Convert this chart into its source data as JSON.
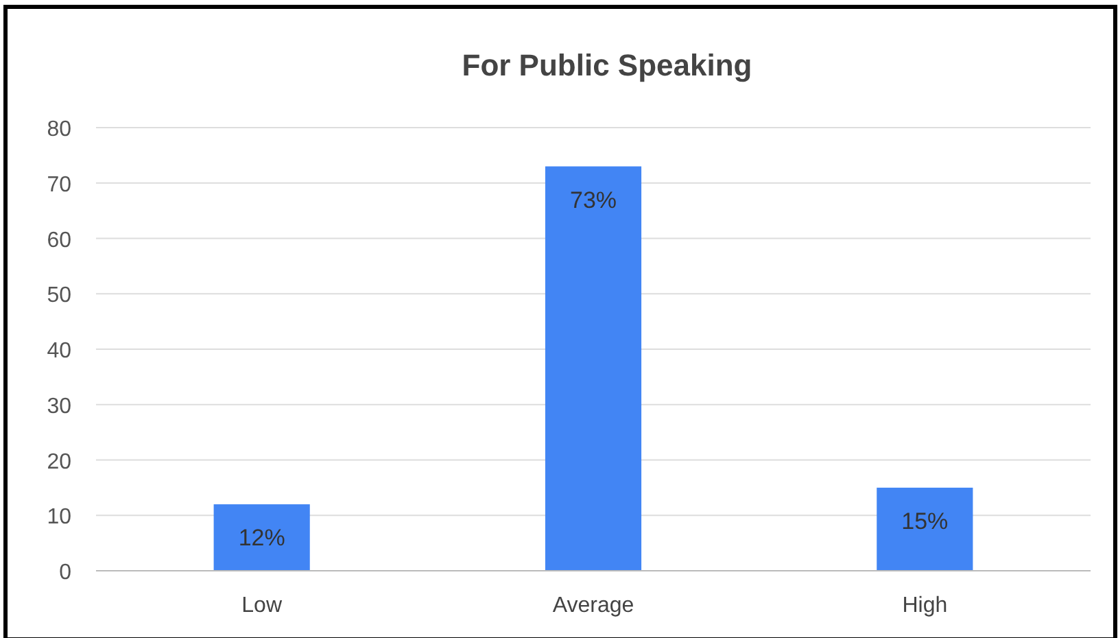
{
  "chart_data": {
    "type": "bar",
    "title": "For Public Speaking",
    "categories": [
      "Low",
      "Average",
      "High"
    ],
    "values": [
      12,
      73,
      15
    ],
    "value_labels": [
      "12%",
      "73%",
      "15%"
    ],
    "color": "#4285f4",
    "ylim": [
      0,
      80
    ],
    "yticks": [
      0,
      10,
      20,
      30,
      40,
      50,
      60,
      70,
      80
    ],
    "grid": "y"
  }
}
